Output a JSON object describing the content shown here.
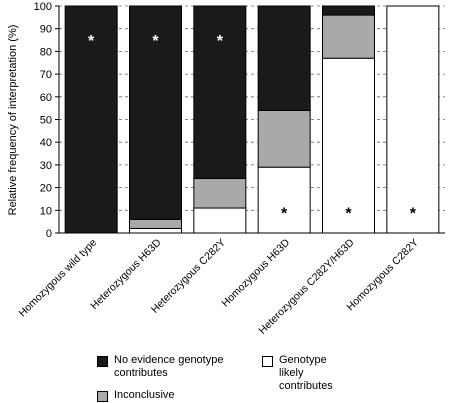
{
  "chart_data": {
    "type": "bar",
    "stacked": true,
    "categories": [
      "Homozygous wild type",
      "Heterozygous H63D",
      "Heterozygous C282Y",
      "Homozygous H63D",
      "Heterozygous C282Y/H63D",
      "Homozygous C282Y"
    ],
    "series": [
      {
        "name": "Genotype likely contributes",
        "color": "#ffffff",
        "values": [
          0,
          2,
          11,
          29,
          77,
          100
        ]
      },
      {
        "name": "Inconclusive",
        "color": "#a9a9a9",
        "values": [
          0,
          4,
          13,
          25,
          19,
          0
        ]
      },
      {
        "name": "No evidence genotype contributes",
        "color": "#1a1a1a",
        "values": [
          100,
          94,
          76,
          46,
          4,
          0
        ]
      }
    ],
    "annotations": [
      {
        "category": "Homozygous wild type",
        "text": "*",
        "y": 86,
        "color": "#ffffff"
      },
      {
        "category": "Heterozygous H63D",
        "text": "*",
        "y": 86,
        "color": "#ffffff"
      },
      {
        "category": "Heterozygous C282Y",
        "text": "*",
        "y": 86,
        "color": "#ffffff"
      },
      {
        "category": "Homozygous H63D",
        "text": "*",
        "y": 10,
        "color": "#000000"
      },
      {
        "category": "Heterozygous C282Y/H63D",
        "text": "*",
        "y": 10,
        "color": "#000000"
      },
      {
        "category": "Homozygous C282Y",
        "text": "*",
        "y": 10,
        "color": "#000000"
      }
    ],
    "yticks": [
      0,
      10,
      20,
      30,
      40,
      50,
      60,
      70,
      80,
      90,
      100
    ],
    "ylim": [
      0,
      100
    ],
    "ylabel": "Relative frequency of interpretation (%)",
    "xlabel": "",
    "grid": true,
    "legend_position": "bottom"
  },
  "legend": {
    "no_evidence": "No evidence genotype contributes",
    "inconclusive": "Inconclusive",
    "likely": "Genotype likely contributes"
  }
}
